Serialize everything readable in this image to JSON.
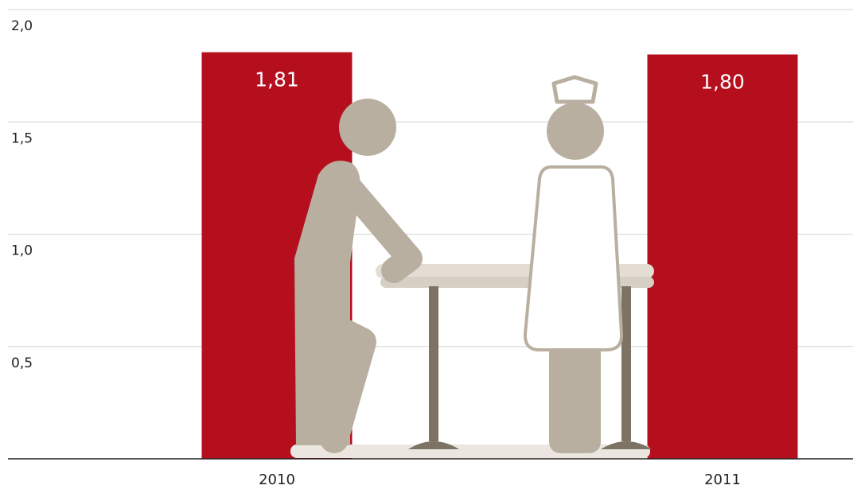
{
  "chart_data": {
    "type": "bar",
    "categories": [
      "2010",
      "2011"
    ],
    "values": [
      1.81,
      1.8
    ],
    "value_labels": [
      "1,81",
      "1,80"
    ],
    "color": "#b50f1e",
    "ylim": [
      0,
      2
    ],
    "yticks": [
      {
        "value": 0.5,
        "label": "0,5"
      },
      {
        "value": 1.0,
        "label": "1,0"
      },
      {
        "value": 1.5,
        "label": "1,5"
      },
      {
        "value": 2.0,
        "label": "2,0"
      }
    ],
    "grid": true
  }
}
